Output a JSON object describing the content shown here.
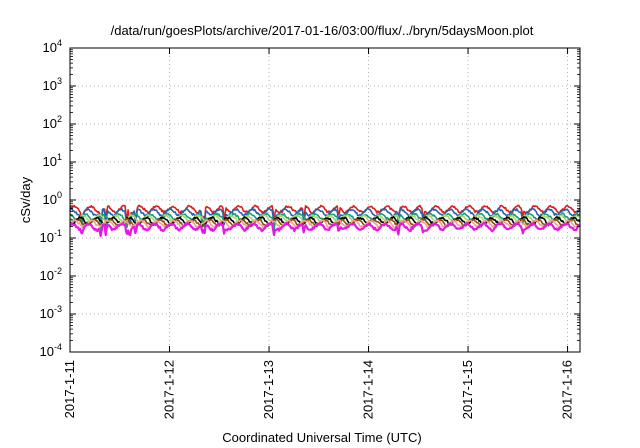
{
  "chart_data": {
    "type": "line",
    "title": "/data/run/goesPlots/archive/2017-01-16/03:00/flux/../bryn/5daysMoon.plot",
    "xlabel": "Coordinated Universal Time (UTC)",
    "ylabel": "cSv/day",
    "y_scale": "log",
    "ylim": [
      0.0001,
      10000
    ],
    "xlim": [
      "2017-01-11",
      "2017-01-16 03:00"
    ],
    "x_ticks": [
      "2017-1-11",
      "2017-1-12",
      "2017-1-13",
      "2017-1-14",
      "2017-1-15",
      "2017-1-16"
    ],
    "y_ticks": [
      {
        "base": "10",
        "exp": "-4"
      },
      {
        "base": "10",
        "exp": "-3"
      },
      {
        "base": "10",
        "exp": "-2"
      },
      {
        "base": "10",
        "exp": "-1"
      },
      {
        "base": "10",
        "exp": "0"
      },
      {
        "base": "10",
        "exp": "1"
      },
      {
        "base": "10",
        "exp": "2"
      },
      {
        "base": "10",
        "exp": "3"
      },
      {
        "base": "10",
        "exp": "4"
      }
    ],
    "grid": true,
    "series": [
      {
        "color": "#e31a1c",
        "level": 0.58,
        "dips": [
          [
            0.12,
            0.25
          ],
          [
            0.31,
            0.15
          ],
          [
            0.36,
            0.2
          ],
          [
            0.57,
            0.2
          ],
          [
            0.6,
            0.18
          ],
          [
            0.66,
            0.2
          ],
          [
            1.33,
            0.22
          ],
          [
            1.35,
            0.18
          ],
          [
            1.55,
            0.2
          ],
          [
            2.05,
            0.2
          ],
          [
            2.35,
            0.2
          ],
          [
            2.7,
            0.3
          ],
          [
            3.3,
            0.3
          ],
          [
            3.55,
            0.3
          ],
          [
            4.55,
            0.3
          ]
        ]
      },
      {
        "color": "#2166ac",
        "level": 0.48,
        "dips": [
          [
            0.12,
            0.2
          ],
          [
            0.31,
            0.13
          ],
          [
            0.36,
            0.18
          ],
          [
            0.57,
            0.18
          ],
          [
            0.6,
            0.16
          ],
          [
            0.66,
            0.18
          ],
          [
            1.33,
            0.2
          ],
          [
            1.35,
            0.16
          ],
          [
            1.55,
            0.18
          ],
          [
            2.05,
            0.18
          ],
          [
            2.35,
            0.18
          ],
          [
            2.7,
            0.25
          ],
          [
            3.3,
            0.28
          ],
          [
            3.55,
            0.28
          ],
          [
            4.55,
            0.28
          ]
        ]
      },
      {
        "color": "#1a9e77",
        "level": 0.36,
        "dips": [
          [
            0.12,
            0.18
          ],
          [
            0.31,
            0.12
          ],
          [
            0.57,
            0.16
          ],
          [
            1.33,
            0.18
          ],
          [
            1.35,
            0.15
          ],
          [
            2.05,
            0.16
          ],
          [
            2.7,
            0.22
          ],
          [
            3.3,
            0.24
          ],
          [
            4.55,
            0.24
          ]
        ]
      },
      {
        "color": "#a6d96a",
        "level": 0.33,
        "dips": []
      },
      {
        "color": "#000000",
        "level": 0.29,
        "dips": [
          [
            1.33,
            0.2
          ],
          [
            2.7,
            0.2
          ],
          [
            3.3,
            0.22
          ]
        ]
      },
      {
        "color": "#8c510a",
        "level": 0.26,
        "dips": [
          [
            1.33,
            0.19
          ],
          [
            2.7,
            0.19
          ]
        ]
      },
      {
        "color": "#fb9a99",
        "level": 0.24,
        "dips": []
      },
      {
        "color": "#e41ae4",
        "level": 0.2,
        "dips": [
          [
            0.12,
            0.12
          ],
          [
            0.31,
            0.1
          ],
          [
            0.36,
            0.11
          ],
          [
            0.57,
            0.11
          ],
          [
            0.6,
            0.1
          ],
          [
            0.66,
            0.11
          ],
          [
            1.33,
            0.12
          ],
          [
            1.35,
            0.11
          ],
          [
            1.55,
            0.12
          ],
          [
            2.05,
            0.12
          ],
          [
            2.35,
            0.12
          ],
          [
            2.7,
            0.13
          ],
          [
            3.3,
            0.12
          ],
          [
            3.55,
            0.13
          ],
          [
            4.55,
            0.13
          ]
        ]
      }
    ]
  }
}
